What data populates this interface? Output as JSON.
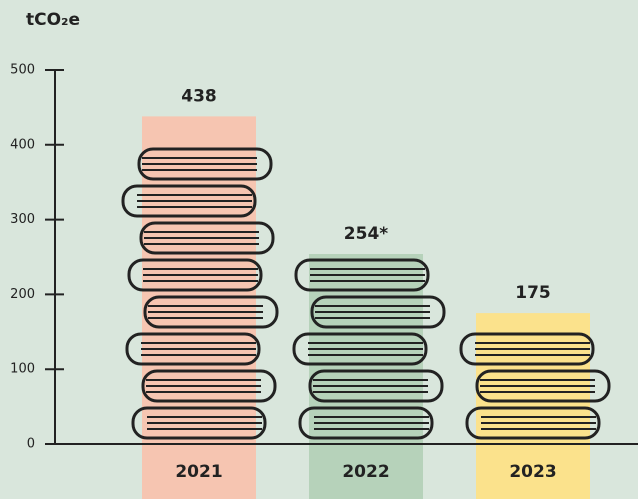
{
  "chart_data": {
    "type": "bar",
    "y_label": "tCO₂e",
    "categories": [
      "2021",
      "2022",
      "2023"
    ],
    "values": [
      438,
      254,
      175
    ],
    "value_labels": [
      "438",
      "254*",
      "175"
    ],
    "colors": [
      "#f6c5b1",
      "#b6d2ba",
      "#fbe28c"
    ],
    "ylim": [
      0,
      500
    ],
    "yticks": [
      0,
      100,
      200,
      300,
      400,
      500
    ]
  }
}
